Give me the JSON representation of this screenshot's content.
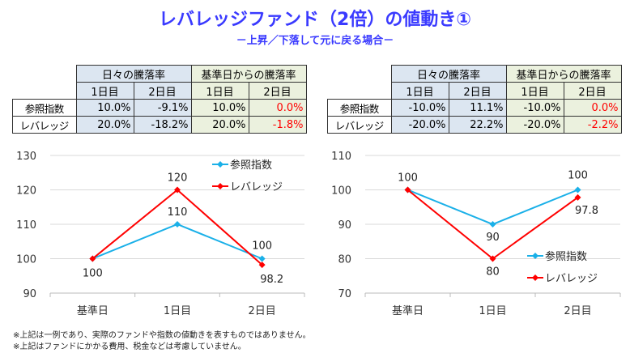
{
  "title": "レバレッジファンド（2倍）の値動き①",
  "subtitle": "－上昇／下落して元に戻る場合－",
  "tables": [
    {
      "group_headers": [
        "日々の騰落率",
        "基準日からの騰落率"
      ],
      "day_headers": [
        "1日目",
        "2日目",
        "1日目",
        "2日目"
      ],
      "rows": [
        {
          "label": "参照指数",
          "values": [
            "10.0%",
            "-9.1%",
            "10.0%",
            "0.0%"
          ]
        },
        {
          "label": "レバレッジ",
          "values": [
            "20.0%",
            "-18.2%",
            "20.0%",
            "-1.8%"
          ]
        }
      ]
    },
    {
      "group_headers": [
        "日々の騰落率",
        "基準日からの騰落率"
      ],
      "day_headers": [
        "1日目",
        "2日目",
        "1日目",
        "2日目"
      ],
      "rows": [
        {
          "label": "参照指数",
          "values": [
            "-10.0%",
            "11.1%",
            "-10.0%",
            "0.0%"
          ]
        },
        {
          "label": "レバレッジ",
          "values": [
            "-20.0%",
            "22.2%",
            "-20.0%",
            "-2.2%"
          ]
        }
      ]
    }
  ],
  "chart_data": [
    {
      "type": "line",
      "categories": [
        "基準日",
        "1日目",
        "2日目"
      ],
      "ylim": [
        90,
        130
      ],
      "yticks": [
        90,
        100,
        110,
        120,
        130
      ],
      "grid": true,
      "legend": "top-right",
      "series": [
        {
          "name": "参照指数",
          "values": [
            100,
            110,
            100
          ],
          "color": "#1ab0e8"
        },
        {
          "name": "レバレッジ",
          "values": [
            100,
            120,
            98.2
          ],
          "color": "#ff0000"
        }
      ],
      "data_labels": {
        "参照指数": [
          "",
          "110",
          "100"
        ],
        "レバレッジ": [
          "100",
          "120",
          "98.2"
        ]
      }
    },
    {
      "type": "line",
      "categories": [
        "基準日",
        "1日目",
        "2日目"
      ],
      "ylim": [
        70,
        110
      ],
      "yticks": [
        70,
        80,
        90,
        100,
        110
      ],
      "grid": true,
      "legend": "bottom-right",
      "series": [
        {
          "name": "参照指数",
          "values": [
            100,
            90,
            100
          ],
          "color": "#1ab0e8"
        },
        {
          "name": "レバレッジ",
          "values": [
            100,
            80,
            97.8
          ],
          "color": "#ff0000"
        }
      ],
      "data_labels": {
        "参照指数": [
          "100",
          "90",
          "100"
        ],
        "レバレッジ": [
          "",
          "80",
          "97.8"
        ]
      }
    }
  ],
  "footnotes": [
    "※上記は一例であり、実際のファンドや指数の値動きを表すものではありません。",
    "※上記はファンドにかかる費用、税金などは考慮していません。"
  ]
}
